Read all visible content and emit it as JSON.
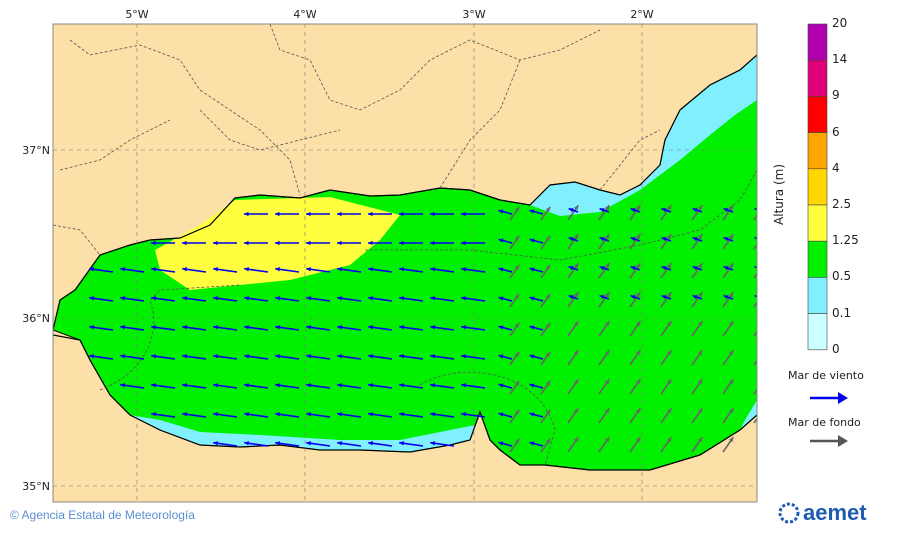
{
  "map": {
    "lon_ticks": [
      "5°W",
      "4°W",
      "3°W",
      "2°W"
    ],
    "lat_ticks": [
      "37°N",
      "36°N",
      "35°N"
    ],
    "colors": {
      "land": "#fde0a8",
      "sea_0_0.1": "#ccffff",
      "sea_0.1_0.5": "#80f0ff",
      "sea_0.5_1.25": "#00f000",
      "sea_1.25_2.5": "#ffff40",
      "wind_sea_arrow": "#0000ee",
      "swell_arrow": "#666666"
    }
  },
  "legend": {
    "title": "Altura (m)",
    "levels": [
      "20",
      "14",
      "9",
      "6",
      "4",
      "2.5",
      "1.25",
      "0.5",
      "0.1",
      "0"
    ],
    "colors": [
      "#b000b0",
      "#e0007a",
      "#ff0000",
      "#ffa500",
      "#ffd700",
      "#ffff40",
      "#00f000",
      "#80f0ff",
      "#ccffff"
    ],
    "wind_sea_label": "Mar de viento",
    "swell_label": "Mar de fondo"
  },
  "footer": {
    "credit": "© Agencia Estatal de Meteorología",
    "logo": "aemet"
  }
}
